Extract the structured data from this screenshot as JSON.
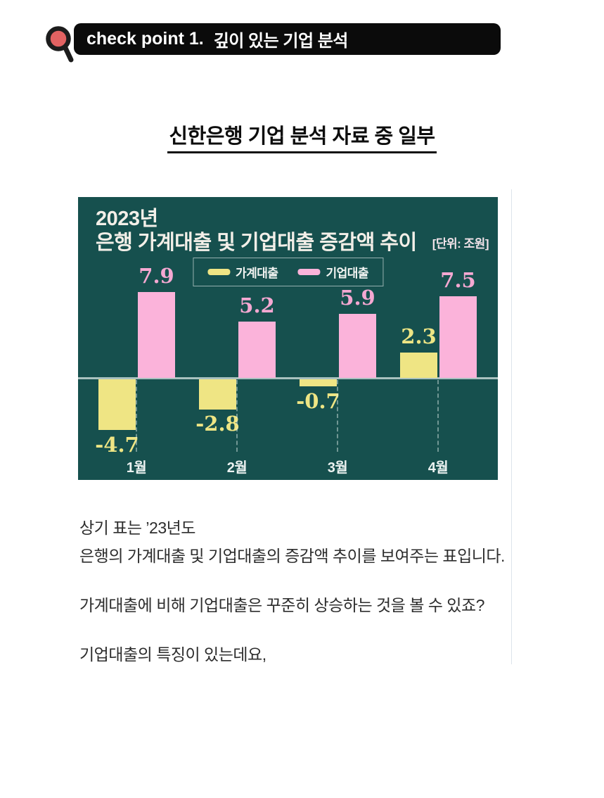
{
  "banner": {
    "prefix": "check point 1.",
    "title": "깊이 있는 기업 분석",
    "bg_color": "#0b0b0b",
    "text_color": "#ffffff",
    "magnifier_fill": "#e26262",
    "magnifier_stroke": "#1c1c1c"
  },
  "document": {
    "title": "신한은행 기업 분석 자료 중 일부"
  },
  "chart_data": {
    "type": "bar",
    "title_line1": "2023년",
    "title_line2": "은행 가계대출 및 기업대출 증감액 추이",
    "unit_label": "[단위: 조원]",
    "categories": [
      "1월",
      "2월",
      "3월",
      "4월"
    ],
    "series": [
      {
        "name": "가계대출",
        "color": "#efe584",
        "values": [
          -4.7,
          -2.8,
          -0.7,
          2.3
        ]
      },
      {
        "name": "기업대출",
        "color": "#fbb3da",
        "values": [
          7.9,
          5.2,
          5.9,
          7.5
        ]
      }
    ],
    "ylim": [
      -6.5,
      9.5
    ],
    "grid": false,
    "legend_position": "top-center",
    "background": "#16504e",
    "baseline_color": "#a9c2bf",
    "title_color": "#f3efe8",
    "unit_color": "#f2e3ea",
    "household_label_color": "#eee584",
    "corporate_label_color": "#f5a8d2"
  },
  "paragraphs": {
    "line1": "상기 표는 ’23년도",
    "line2": "은행의 가계대출 및 기업대출의 증감액 추이를 보여주는 표입니다.",
    "line3": "가계대출에 비해 기업대출은 꾸준히 상승하는 것을 볼 수 있죠?",
    "line4": "기업대출의 특징이 있는데요,"
  }
}
